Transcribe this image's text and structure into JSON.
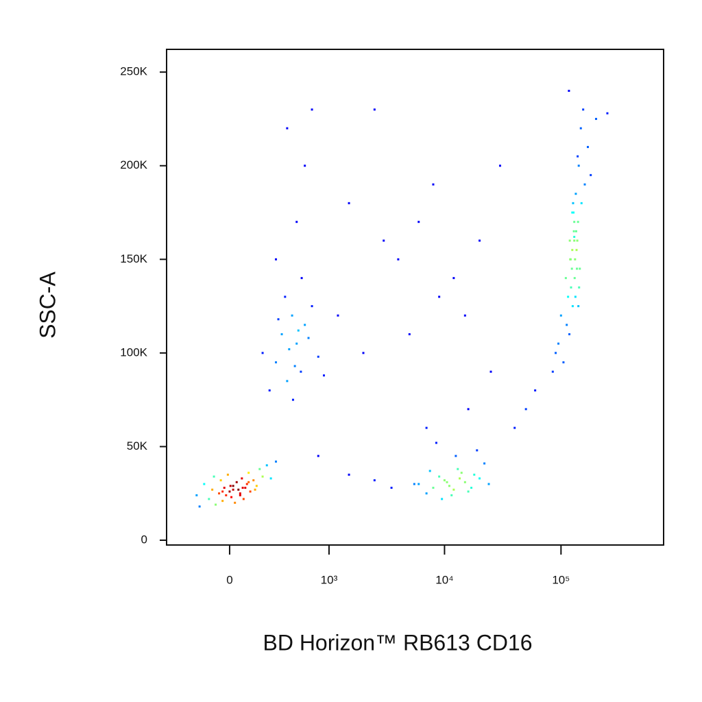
{
  "chart_data": {
    "type": "scatter",
    "xlabel": "BD Horizon™ RB613 CD16",
    "ylabel": "SSC-A",
    "xscale": "biexponential",
    "xlim": [
      -456,
      760000
    ],
    "ylim": [
      -2560,
      262144
    ],
    "xticks": [
      0,
      {
        "value": 1000,
        "label": "10³"
      },
      {
        "value": 10000,
        "label": "10⁴"
      },
      {
        "value": 100000,
        "label": "10⁵"
      }
    ],
    "yticks": [
      0,
      {
        "value": 50000,
        "label": "50K"
      },
      {
        "value": 100000,
        "label": "100K"
      },
      {
        "value": 150000,
        "label": "150K"
      },
      {
        "value": 200000,
        "label": "200K"
      },
      {
        "value": 250000,
        "label": "250K"
      }
    ],
    "x": [
      -200,
      -150,
      -120,
      -100,
      -80,
      -60,
      -50,
      -40,
      -30,
      -20,
      -10,
      0,
      10,
      20,
      30,
      40,
      50,
      60,
      70,
      80,
      90,
      100,
      110,
      120,
      140,
      160,
      180,
      200,
      230,
      260,
      300,
      -180,
      -90,
      20,
      60,
      110,
      150,
      -40,
      5,
      75,
      130000,
      120000,
      140000,
      110000,
      150000,
      125000,
      135000,
      115000,
      145000,
      128000,
      100000,
      160000,
      132000,
      118000,
      142000,
      122000,
      138000,
      90000,
      170000,
      126000,
      134000,
      112000,
      148000,
      130000,
      124000,
      136000,
      105000,
      155000,
      129000,
      131000,
      95000,
      180000,
      127000,
      133000,
      119000,
      141000,
      121000,
      139000,
      85000,
      200000,
      125000,
      137000,
      117000,
      143000,
      130000,
      6000,
      8000,
      10000,
      12000,
      15000,
      18000,
      7000,
      9000,
      11000,
      13000,
      16000,
      20000,
      22000,
      5500,
      9500,
      12500,
      14000,
      17000,
      8500,
      10500,
      11500,
      19000,
      24000,
      7500,
      13500,
      200,
      300,
      350,
      400,
      450,
      500,
      550,
      600,
      700,
      800,
      250,
      380,
      420,
      480,
      520,
      650,
      900,
      320,
      460,
      560,
      400,
      600,
      1500,
      2500,
      3000,
      4000,
      6000,
      8000,
      12000,
      15000,
      20000,
      30000,
      500,
      700,
      1200,
      2000,
      5000,
      9000,
      25000,
      40000,
      1500,
      2500,
      3500,
      60000,
      300,
      800,
      16000,
      7000,
      50000,
      250000
    ],
    "values": [
      24000,
      30000,
      22000,
      27000,
      19000,
      25000,
      32000,
      21000,
      28000,
      24000,
      35000,
      26000,
      23000,
      29000,
      20000,
      31000,
      27000,
      25000,
      33000,
      22000,
      28000,
      30000,
      36000,
      26000,
      32000,
      29000,
      38000,
      34000,
      40000,
      33000,
      42000,
      18000,
      34000,
      27000,
      24000,
      31000,
      27000,
      26000,
      29000,
      28000,
      160000,
      150000,
      170000,
      140000,
      180000,
      155000,
      165000,
      130000,
      145000,
      175000,
      120000,
      190000,
      150000,
      110000,
      200000,
      135000,
      160000,
      100000,
      210000,
      125000,
      185000,
      115000,
      220000,
      170000,
      145000,
      155000,
      95000,
      230000,
      165000,
      140000,
      105000,
      195000,
      180000,
      130000,
      160000,
      125000,
      150000,
      205000,
      90000,
      225000,
      175000,
      145000,
      240000,
      135000,
      162000,
      30000,
      28000,
      32000,
      27000,
      31000,
      35000,
      25000,
      34000,
      29000,
      38000,
      26000,
      33000,
      41000,
      30000,
      22000,
      45000,
      36000,
      28000,
      52000,
      31000,
      24000,
      48000,
      30000,
      37000,
      33000,
      100000,
      95000,
      110000,
      85000,
      120000,
      105000,
      90000,
      115000,
      125000,
      98000,
      80000,
      130000,
      102000,
      93000,
      112000,
      108000,
      88000,
      118000,
      75000,
      140000,
      220000,
      200000,
      180000,
      230000,
      160000,
      150000,
      170000,
      190000,
      140000,
      120000,
      160000,
      200000,
      170000,
      230000,
      120000,
      100000,
      110000,
      130000,
      90000,
      60000,
      35000,
      32000,
      28000,
      80000,
      150000,
      45000,
      70000,
      60000,
      70000,
      228000
    ]
  }
}
